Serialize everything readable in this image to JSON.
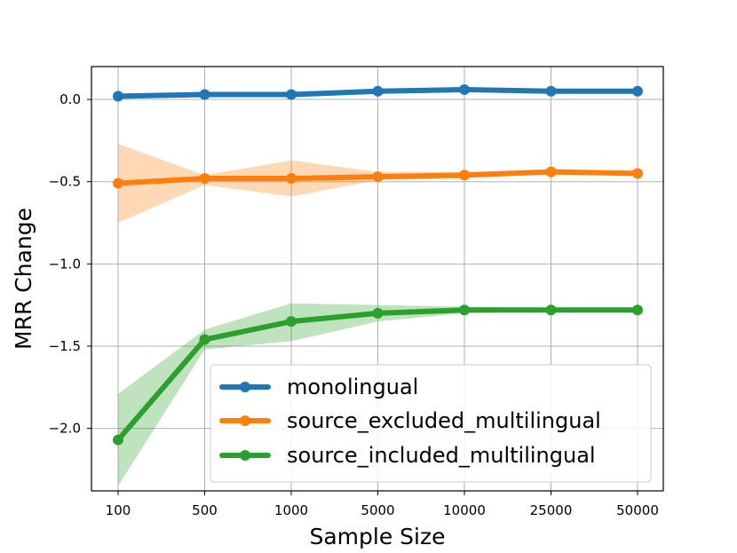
{
  "chart_data": {
    "type": "line",
    "categories": [
      "100",
      "500",
      "1000",
      "5000",
      "10000",
      "25000",
      "50000"
    ],
    "xlabel": "Sample Size",
    "ylabel": "MRR Change",
    "ylim": [
      -2.38,
      0.2
    ],
    "yticks": [
      0.0,
      -0.5,
      -1.0,
      -1.5,
      -2.0
    ],
    "ytick_labels": [
      "0.0",
      "−0.5",
      "−1.0",
      "−1.5",
      "−2.0"
    ],
    "grid": true,
    "legend_position": "lower-right",
    "series": [
      {
        "name": "monolingual",
        "color": "#1f77b4",
        "values": [
          0.02,
          0.03,
          0.03,
          0.05,
          0.06,
          0.05,
          0.05
        ]
      },
      {
        "name": "source_excluded_multilingual",
        "color": "#ff7f0e",
        "values": [
          -0.51,
          -0.48,
          -0.48,
          -0.47,
          -0.46,
          -0.44,
          -0.45
        ],
        "band_upper": [
          -0.27,
          -0.46,
          -0.37,
          -0.44,
          -0.44,
          -0.43,
          -0.44
        ],
        "band_lower": [
          -0.75,
          -0.52,
          -0.59,
          -0.49,
          -0.48,
          -0.45,
          -0.46
        ]
      },
      {
        "name": "source_included_multilingual",
        "color": "#2ca02c",
        "values": [
          -2.07,
          -1.46,
          -1.35,
          -1.3,
          -1.28,
          -1.28,
          -1.28
        ],
        "band_upper": [
          -1.79,
          -1.4,
          -1.24,
          -1.25,
          -1.26,
          -1.27,
          -1.27
        ],
        "band_lower": [
          -2.35,
          -1.52,
          -1.47,
          -1.35,
          -1.3,
          -1.29,
          -1.29
        ]
      }
    ]
  }
}
